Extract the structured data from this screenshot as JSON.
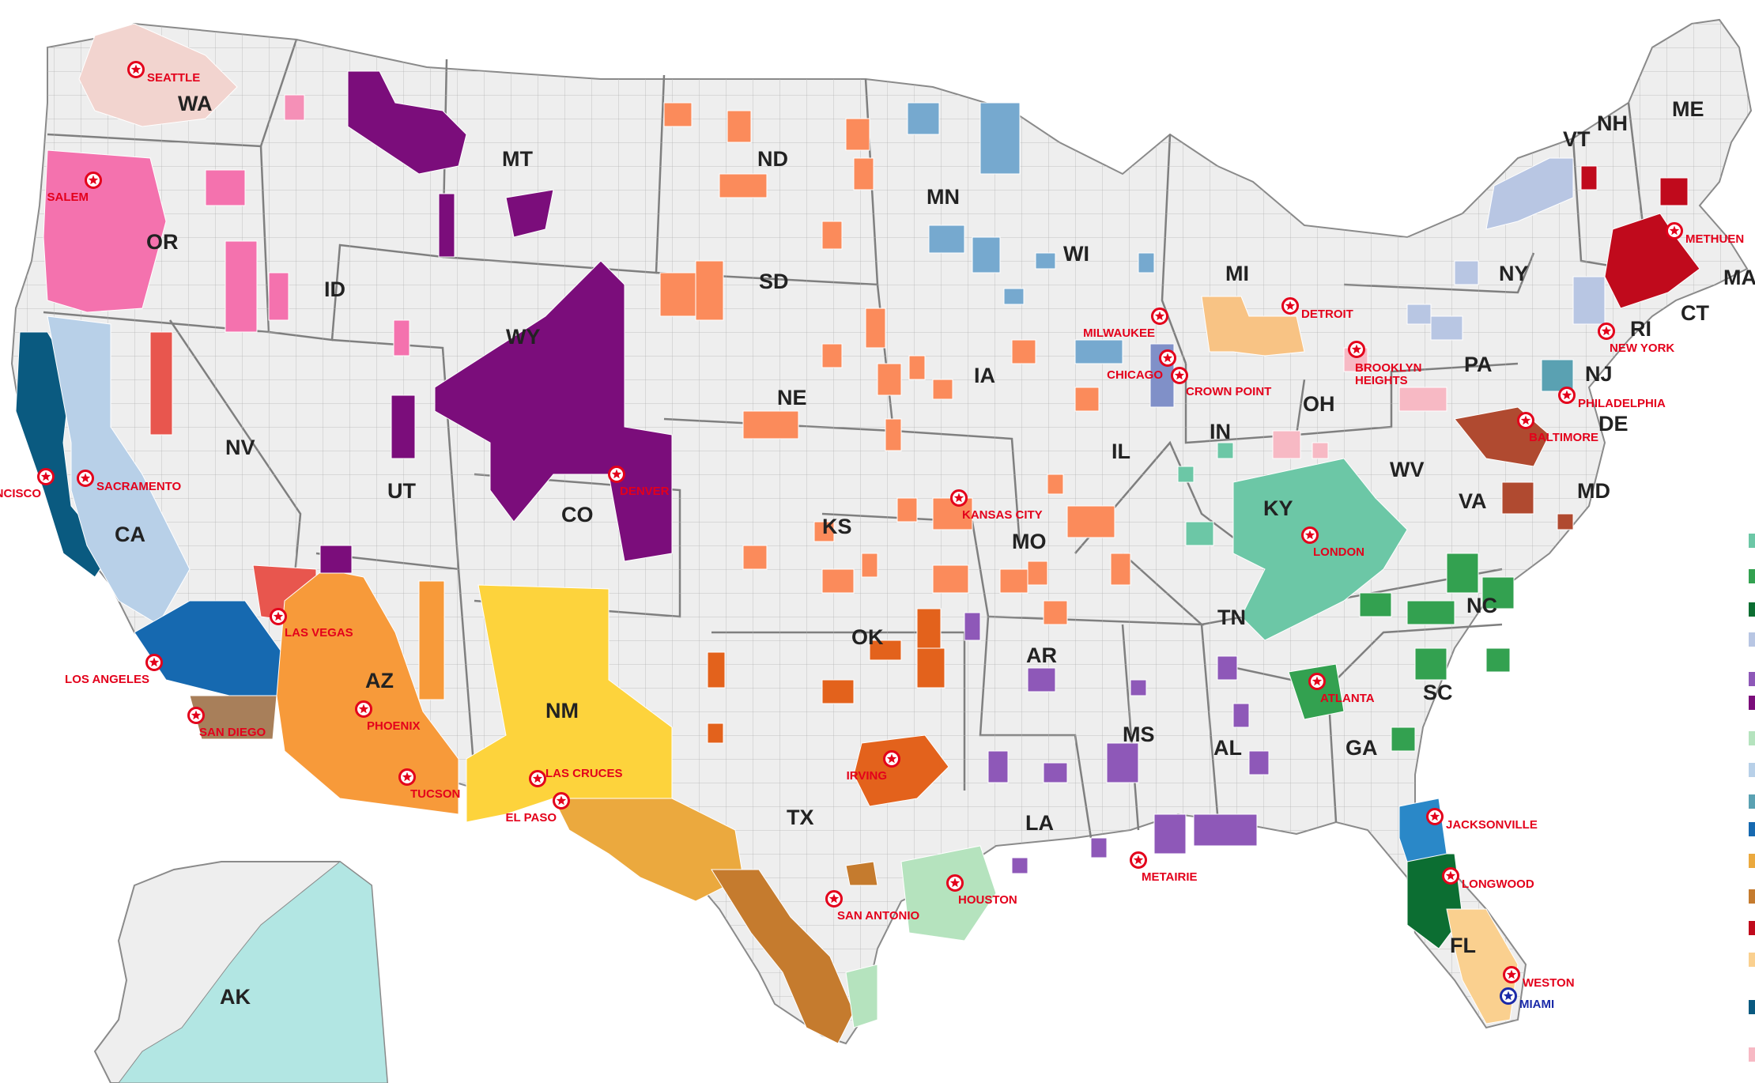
{
  "map": {
    "states": [
      "WA",
      "OR",
      "CA",
      "NV",
      "ID",
      "MT",
      "WY",
      "UT",
      "CO",
      "AZ",
      "NM",
      "ND",
      "SD",
      "NE",
      "KS",
      "OK",
      "TX",
      "MN",
      "IA",
      "MO",
      "AR",
      "LA",
      "WI",
      "IL",
      "MI",
      "IN",
      "OH",
      "KY",
      "TN",
      "MS",
      "AL",
      "GA",
      "FL",
      "SC",
      "NC",
      "VA",
      "WV",
      "PA",
      "NY",
      "VT",
      "NH",
      "ME",
      "MA",
      "CT",
      "RI",
      "NJ",
      "DE",
      "MD",
      "AK"
    ],
    "cities": [
      {
        "name": "SEATTLE",
        "color": "#e3001b"
      },
      {
        "name": "SALEM",
        "color": "#e3001b"
      },
      {
        "name": "SACRAMENTO",
        "color": "#e3001b"
      },
      {
        "name": "NCISCO",
        "color": "#e3001b"
      },
      {
        "name": "LOS ANGELES",
        "color": "#e3001b"
      },
      {
        "name": "SAN DIEGO",
        "color": "#e3001b"
      },
      {
        "name": "LAS VEGAS",
        "color": "#e3001b"
      },
      {
        "name": "PHOENIX",
        "color": "#e3001b"
      },
      {
        "name": "TUCSON",
        "color": "#e3001b"
      },
      {
        "name": "LAS CRUCES",
        "color": "#e3001b"
      },
      {
        "name": "EL PASO",
        "color": "#e3001b"
      },
      {
        "name": "DENVER",
        "color": "#e3001b"
      },
      {
        "name": "KANSAS CITY",
        "color": "#e3001b"
      },
      {
        "name": "IRVING",
        "color": "#e3001b"
      },
      {
        "name": "SAN ANTONIO",
        "color": "#e3001b"
      },
      {
        "name": "HOUSTON",
        "color": "#e3001b"
      },
      {
        "name": "MILWAUKEE",
        "color": "#e3001b"
      },
      {
        "name": "CHICAGO",
        "color": "#e3001b"
      },
      {
        "name": "CROWN POINT",
        "color": "#e3001b"
      },
      {
        "name": "DETROIT",
        "color": "#e3001b"
      },
      {
        "name": "BROOKLYN HEIGHTS",
        "color": "#e3001b"
      },
      {
        "name": "METAIRIE",
        "color": "#e3001b"
      },
      {
        "name": "LONDON",
        "color": "#e3001b"
      },
      {
        "name": "ATLANTA",
        "color": "#e3001b"
      },
      {
        "name": "JACKSONVILLE",
        "color": "#e3001b"
      },
      {
        "name": "LONGWOOD",
        "color": "#e3001b"
      },
      {
        "name": "WESTON",
        "color": "#e3001b"
      },
      {
        "name": "MIAMI",
        "color": "#1a2aa8"
      },
      {
        "name": "BALTIMORE",
        "color": "#e3001b"
      },
      {
        "name": "PHILADELPHIA",
        "color": "#e3001b"
      },
      {
        "name": "NEW YORK",
        "color": "#e3001b"
      },
      {
        "name": "METHUEN",
        "color": "#e3001b"
      }
    ]
  }
}
